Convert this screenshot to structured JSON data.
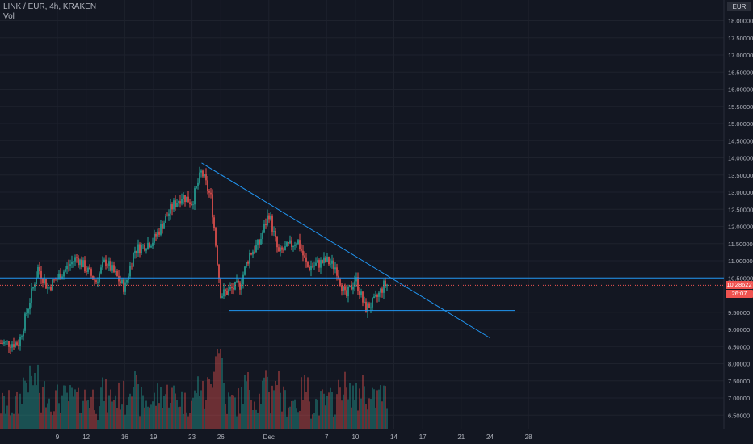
{
  "header": {
    "symbol_line": "LINK / EUR, 4h, KRAKEN",
    "indicator": "Vol"
  },
  "axis": {
    "unit": "EUR",
    "y_ticks": [
      "18.00000",
      "17.50000",
      "17.00000",
      "16.50000",
      "16.00000",
      "15.50000",
      "15.00000",
      "14.50000",
      "14.00000",
      "13.50000",
      "13.00000",
      "12.50000",
      "12.00000",
      "11.50000",
      "11.00000",
      "10.50000",
      "10.00000",
      "9.50000",
      "9.00000",
      "8.50000",
      "8.00000",
      "7.50000",
      "7.00000",
      "6.50000"
    ],
    "x_ticks": [
      "9",
      "12",
      "16",
      "19",
      "23",
      "26",
      "Dec",
      "7",
      "10",
      "14",
      "17",
      "21",
      "24",
      "28"
    ],
    "current_price": "10.28622",
    "countdown": "26:07"
  },
  "colors": {
    "background": "#131722",
    "up": "#26a69a",
    "down": "#ef5350",
    "trendline": "#2196f3",
    "text": "#b2b5be"
  },
  "chart_data": {
    "type": "candlestick",
    "title": "LINK / EUR, 4h, KRAKEN",
    "ylim": [
      6.3,
      18.2
    ],
    "grid": true,
    "approx_path": [
      {
        "x": "Nov 5",
        "y": 8.6
      },
      {
        "x": "Nov 7",
        "y": 10.8
      },
      {
        "x": "Nov 8",
        "y": 10.2
      },
      {
        "x": "Nov 11",
        "y": 11.1
      },
      {
        "x": "Nov 13",
        "y": 10.4
      },
      {
        "x": "Nov 14",
        "y": 11.0
      },
      {
        "x": "Nov 16",
        "y": 10.2
      },
      {
        "x": "Nov 17",
        "y": 11.3
      },
      {
        "x": "Nov 19",
        "y": 11.6
      },
      {
        "x": "Nov 21",
        "y": 12.6
      },
      {
        "x": "Nov 22",
        "y": 12.9
      },
      {
        "x": "Nov 23",
        "y": 12.7
      },
      {
        "x": "Nov 24",
        "y": 13.6
      },
      {
        "x": "Nov 25",
        "y": 12.8
      },
      {
        "x": "Nov 26",
        "y": 10.0
      },
      {
        "x": "Nov 28",
        "y": 10.3
      },
      {
        "x": "Nov 29",
        "y": 11.2
      },
      {
        "x": "Nov 30",
        "y": 11.5
      },
      {
        "x": "Dec 1",
        "y": 12.4
      },
      {
        "x": "Dec 2",
        "y": 11.2
      },
      {
        "x": "Dec 4",
        "y": 11.6
      },
      {
        "x": "Dec 5",
        "y": 10.8
      },
      {
        "x": "Dec 7",
        "y": 11.0
      },
      {
        "x": "Dec 8",
        "y": 10.8
      },
      {
        "x": "Dec 9",
        "y": 9.9
      },
      {
        "x": "Dec 10",
        "y": 10.5
      },
      {
        "x": "Dec 11",
        "y": 9.6
      },
      {
        "x": "Dec 12",
        "y": 9.8
      },
      {
        "x": "Dec 13",
        "y": 10.3
      }
    ],
    "lines": [
      {
        "name": "descending trendline",
        "from": {
          "x": "Nov 24",
          "y": 13.85
        },
        "to": {
          "x": "Dec 24",
          "y": 8.75
        }
      },
      {
        "name": "resistance",
        "y": 10.5
      },
      {
        "name": "support",
        "y": 9.55
      }
    ]
  }
}
